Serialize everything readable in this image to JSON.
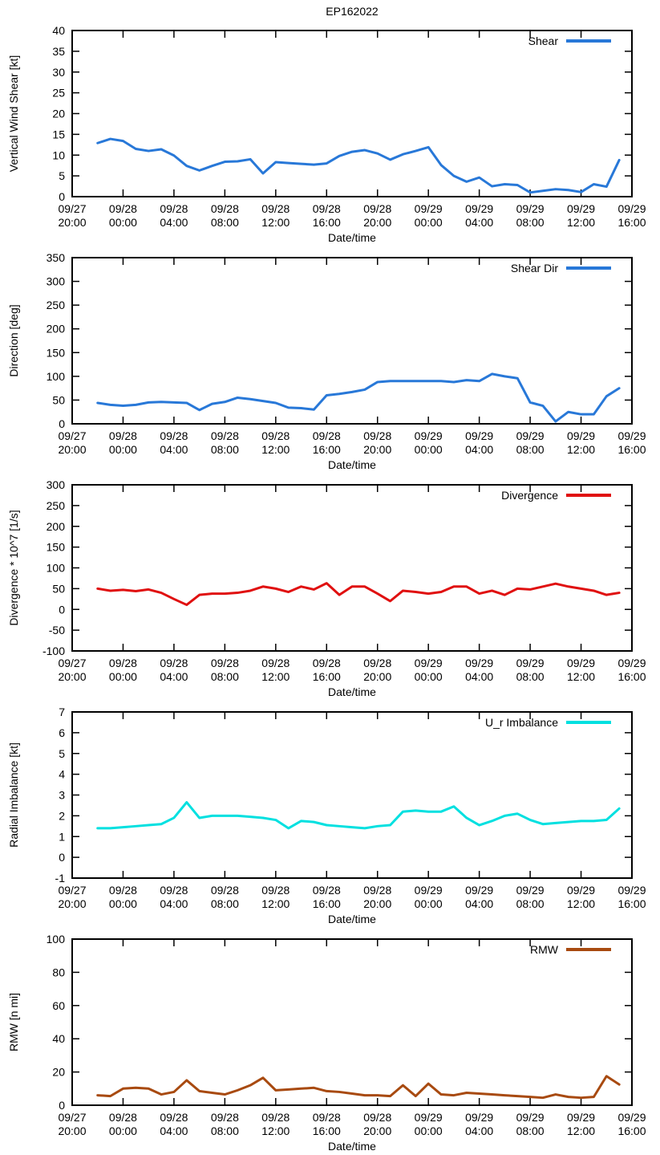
{
  "chart_data": {
    "type": "line",
    "title": "EP162022",
    "layout": "five stacked line-chart panels, shared x axis, legend top-right inside plot box, grid off, black box border with inward mirrored ticks",
    "x_axis": {
      "label": "Date/time",
      "range_hours": [
        0,
        44
      ],
      "ticks": [
        {
          "hour": 0,
          "date": "09/27",
          "time": "20:00"
        },
        {
          "hour": 4,
          "date": "09/28",
          "time": "00:00"
        },
        {
          "hour": 8,
          "date": "09/28",
          "time": "04:00"
        },
        {
          "hour": 12,
          "date": "09/28",
          "time": "08:00"
        },
        {
          "hour": 16,
          "date": "09/28",
          "time": "12:00"
        },
        {
          "hour": 20,
          "date": "09/28",
          "time": "16:00"
        },
        {
          "hour": 24,
          "date": "09/28",
          "time": "20:00"
        },
        {
          "hour": 28,
          "date": "09/29",
          "time": "00:00"
        },
        {
          "hour": 32,
          "date": "09/29",
          "time": "04:00"
        },
        {
          "hour": 36,
          "date": "09/29",
          "time": "08:00"
        },
        {
          "hour": 40,
          "date": "09/29",
          "time": "12:00"
        },
        {
          "hour": 44,
          "date": "09/29",
          "time": "16:00"
        }
      ]
    },
    "x_hours": [
      2,
      3,
      4,
      5,
      6,
      7,
      8,
      9,
      10,
      11,
      12,
      13,
      14,
      15,
      16,
      17,
      18,
      19,
      20,
      21,
      22,
      23,
      24,
      25,
      26,
      27,
      28,
      29,
      30,
      31,
      32,
      33,
      34,
      35,
      36,
      37,
      38,
      39,
      40,
      41,
      42,
      43
    ],
    "panels": [
      {
        "id": "shear",
        "ylabel": "Vertical Wind Shear [kt]",
        "legend": "Shear",
        "color": "#2878d8",
        "ylim": [
          0,
          40
        ],
        "ytick_step": 5,
        "values": [
          12.9,
          13.9,
          13.4,
          11.5,
          11.0,
          11.4,
          9.9,
          7.4,
          6.3,
          7.4,
          8.4,
          8.5,
          9.0,
          5.6,
          8.3,
          8.1,
          7.9,
          7.7,
          8.0,
          9.8,
          10.8,
          11.2,
          10.4,
          8.9,
          10.2,
          11.0,
          11.9,
          7.6,
          5.0,
          3.6,
          4.6,
          2.5,
          3.0,
          2.8,
          1.0,
          1.4,
          1.8,
          1.6,
          1.1,
          3.0,
          2.4,
          8.8
        ]
      },
      {
        "id": "shear-dir",
        "ylabel": "Direction [deg]",
        "legend": "Shear Dir",
        "color": "#2878d8",
        "ylim": [
          0,
          350
        ],
        "ytick_step": 50,
        "values": [
          44,
          40,
          38,
          40,
          45,
          46,
          45,
          44,
          29,
          42,
          46,
          55,
          52,
          48,
          44,
          34,
          33,
          30,
          60,
          63,
          67,
          72,
          88,
          90,
          90,
          90,
          90,
          90,
          88,
          92,
          90,
          105,
          100,
          96,
          45,
          38,
          5,
          25,
          20,
          20,
          58,
          75
        ]
      },
      {
        "id": "divergence",
        "ylabel": "Divergence * 10^7 [1/s]",
        "legend": "Divergence",
        "color": "#e01010",
        "ylim": [
          -100,
          300
        ],
        "ytick_step": 50,
        "values": [
          50,
          45,
          47,
          44,
          48,
          40,
          25,
          11,
          35,
          38,
          38,
          40,
          45,
          55,
          50,
          42,
          55,
          48,
          63,
          35,
          55,
          55,
          38,
          20,
          45,
          42,
          38,
          42,
          55,
          55,
          38,
          45,
          35,
          50,
          48,
          55,
          62,
          55,
          50,
          45,
          35,
          40
        ]
      },
      {
        "id": "radial-imbalance",
        "ylabel": "Radial Imbalance [kt]",
        "legend": "U_r Imbalance",
        "color": "#00e0e0",
        "ylim": [
          -1,
          7
        ],
        "ytick_step": 1,
        "values": [
          1.4,
          1.4,
          1.45,
          1.5,
          1.55,
          1.6,
          1.9,
          2.65,
          1.9,
          2.0,
          2.0,
          2.0,
          1.95,
          1.9,
          1.8,
          1.4,
          1.75,
          1.7,
          1.55,
          1.5,
          1.45,
          1.4,
          1.5,
          1.55,
          2.2,
          2.25,
          2.2,
          2.2,
          2.45,
          1.9,
          1.55,
          1.75,
          2.0,
          2.1,
          1.8,
          1.6,
          1.65,
          1.7,
          1.75,
          1.75,
          1.8,
          2.35
        ]
      },
      {
        "id": "rmw",
        "ylabel": "RMW [n mi]",
        "legend": "RMW",
        "color": "#a84a10",
        "ylim": [
          0,
          100
        ],
        "ytick_step": 20,
        "values": [
          6,
          5.5,
          10,
          10.5,
          10,
          6.5,
          8,
          15,
          8.5,
          7.5,
          6.5,
          9,
          12,
          16.5,
          9,
          9.5,
          10,
          10.5,
          8.5,
          8,
          7,
          6,
          6,
          5.5,
          12,
          5.5,
          13,
          6.5,
          6,
          7.5,
          7,
          6.5,
          6,
          5.5,
          5,
          4.5,
          6.5,
          5,
          4.5,
          5,
          17.5,
          12.5
        ]
      }
    ]
  }
}
